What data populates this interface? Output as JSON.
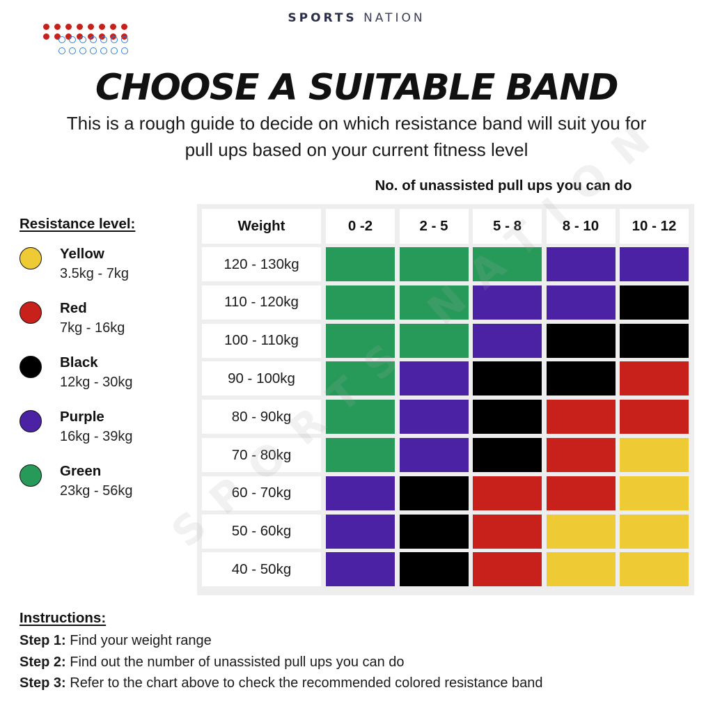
{
  "brand": {
    "bold": "SPORTS",
    "light": "NATION"
  },
  "title": "CHOOSE A SUITABLE BAND",
  "subtitle_line1": "This is a rough guide to decide on which resistance band will suit you for",
  "subtitle_line2": "pull ups based on your current fitness level",
  "pull_caption": "No. of unassisted pull ups you can do",
  "legend": {
    "title": "Resistance level:",
    "items": [
      {
        "name": "Yellow",
        "range": "3.5kg - 7kg",
        "color": "#eecb35"
      },
      {
        "name": "Red",
        "range": "7kg - 16kg",
        "color": "#c8201a"
      },
      {
        "name": "Black",
        "range": "12kg - 30kg",
        "color": "#000000"
      },
      {
        "name": "Purple",
        "range": "16kg - 39kg",
        "color": "#4b22a3"
      },
      {
        "name": "Green",
        "range": "23kg - 56kg",
        "color": "#279a5a"
      }
    ]
  },
  "table": {
    "weight_header": "Weight",
    "columns": [
      "0 -2",
      "2 - 5",
      "5 - 8",
      "8 - 10",
      "10 - 12"
    ],
    "rows": [
      {
        "weight": "120 - 130kg",
        "bands": [
          "Green",
          "Green",
          "Green",
          "Purple",
          "Purple"
        ]
      },
      {
        "weight": "110 - 120kg",
        "bands": [
          "Green",
          "Green",
          "Purple",
          "Purple",
          "Black"
        ]
      },
      {
        "weight": "100 - 110kg",
        "bands": [
          "Green",
          "Green",
          "Purple",
          "Black",
          "Black"
        ]
      },
      {
        "weight": "90 - 100kg",
        "bands": [
          "Green",
          "Purple",
          "Black",
          "Black",
          "Red"
        ]
      },
      {
        "weight": "80 - 90kg",
        "bands": [
          "Green",
          "Purple",
          "Black",
          "Red",
          "Red"
        ]
      },
      {
        "weight": "70 - 80kg",
        "bands": [
          "Green",
          "Purple",
          "Black",
          "Red",
          "Yellow"
        ]
      },
      {
        "weight": "60 - 70kg",
        "bands": [
          "Purple",
          "Black",
          "Red",
          "Red",
          "Yellow"
        ]
      },
      {
        "weight": "50 - 60kg",
        "bands": [
          "Purple",
          "Black",
          "Red",
          "Yellow",
          "Yellow"
        ]
      },
      {
        "weight": "40 - 50kg",
        "bands": [
          "Purple",
          "Black",
          "Red",
          "Yellow",
          "Yellow"
        ]
      }
    ]
  },
  "watermark": "SPORTS NATION",
  "instructions": {
    "title": "Instructions:",
    "steps": [
      {
        "label": "Step 1:",
        "text": "Find your weight range"
      },
      {
        "label": "Step 2:",
        "text": "Find out the number of unassisted pull ups you can do"
      },
      {
        "label": "Step 3:",
        "text": "Refer to the chart above to check the recommended colored resistance band"
      }
    ]
  }
}
